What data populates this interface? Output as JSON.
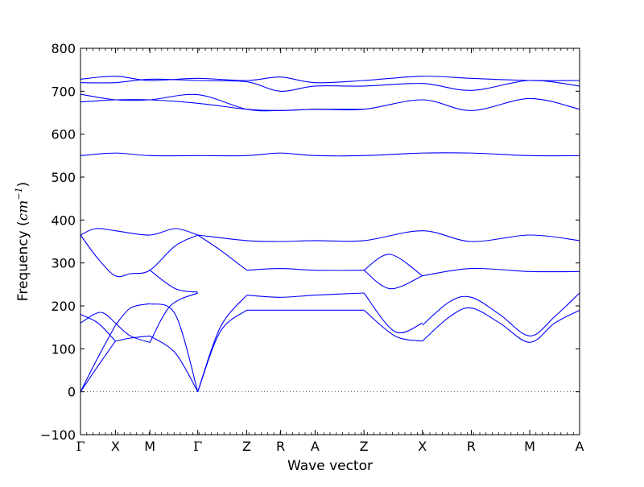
{
  "chart_data": {
    "type": "line",
    "xlabel": "Wave vector",
    "ylabel": "Frequency (cm⁻¹)",
    "ylabel_text": "Frequency (",
    "ylabel_unit": "cm",
    "ylabel_exp": "−1",
    "ylabel_close": ")",
    "ylim": [
      -100,
      800
    ],
    "yticks": [
      -100,
      0,
      100,
      200,
      300,
      400,
      500,
      600,
      700,
      800
    ],
    "grid": false,
    "legend": "none",
    "line_color": "#0000ff",
    "zero_line_color": "#555555",
    "x_ticks": [
      {
        "label": "Γ",
        "pos": 0.0
      },
      {
        "label": "X",
        "pos": 0.07
      },
      {
        "label": "M",
        "pos": 0.139
      },
      {
        "label": "Γ",
        "pos": 0.235
      },
      {
        "label": "Z",
        "pos": 0.333
      },
      {
        "label": "R",
        "pos": 0.401
      },
      {
        "label": "A",
        "pos": 0.47
      },
      {
        "label": "Z",
        "pos": 0.568
      },
      {
        "label": "X",
        "pos": 0.685
      },
      {
        "label": "R",
        "pos": 0.783
      },
      {
        "label": "M",
        "pos": 0.9
      },
      {
        "label": "A",
        "pos": 1.0
      }
    ],
    "series": [
      {
        "x": [
          0,
          0.035,
          0.07
        ],
        "y": [
          0,
          80,
          155
        ]
      },
      {
        "x": [
          0,
          0.035,
          0.07
        ],
        "y": [
          0,
          60,
          118
        ]
      },
      {
        "x": [
          0,
          0.04,
          0.07
        ],
        "y": [
          160,
          185,
          160
        ]
      },
      {
        "x": [
          0,
          0.035,
          0.07
        ],
        "y": [
          180,
          160,
          118
        ]
      },
      {
        "x": [
          0.07,
          0.1,
          0.139
        ],
        "y": [
          155,
          195,
          205
        ]
      },
      {
        "x": [
          0.07,
          0.1,
          0.139
        ],
        "y": [
          118,
          125,
          130
        ]
      },
      {
        "x": [
          0.07,
          0.1,
          0.139
        ],
        "y": [
          160,
          130,
          115
        ]
      },
      {
        "x": [
          0.139,
          0.19,
          0.235
        ],
        "y": [
          205,
          180,
          0
        ]
      },
      {
        "x": [
          0.139,
          0.19,
          0.235
        ],
        "y": [
          130,
          90,
          0
        ]
      },
      {
        "x": [
          0.139,
          0.18,
          0.235
        ],
        "y": [
          115,
          200,
          230
        ]
      },
      {
        "x": [
          0.235,
          0.28,
          0.333
        ],
        "y": [
          0,
          140,
          190
        ]
      },
      {
        "x": [
          0.235,
          0.28,
          0.333
        ],
        "y": [
          0,
          150,
          225
        ]
      },
      {
        "x": [
          0.333,
          0.4,
          0.47,
          0.568
        ],
        "y": [
          190,
          190,
          190,
          190
        ]
      },
      {
        "x": [
          0.333,
          0.4,
          0.47,
          0.568
        ],
        "y": [
          225,
          220,
          225,
          230
        ]
      },
      {
        "x": [
          0.568,
          0.63,
          0.685
        ],
        "y": [
          190,
          130,
          118
        ]
      },
      {
        "x": [
          0.568,
          0.63,
          0.685
        ],
        "y": [
          230,
          140,
          160
        ]
      },
      {
        "x": [
          0.685,
          0.74,
          0.783,
          0.84,
          0.9,
          0.95,
          1.0
        ],
        "y": [
          155,
          210,
          220,
          180,
          130,
          175,
          230
        ]
      },
      {
        "x": [
          0.685,
          0.74,
          0.783,
          0.84,
          0.9,
          0.95,
          1.0
        ],
        "y": [
          118,
          175,
          195,
          160,
          115,
          160,
          190
        ]
      },
      {
        "x": [
          0,
          0.035,
          0.07,
          0.1,
          0.139,
          0.19,
          0.235
        ],
        "y": [
          365,
          310,
          270,
          275,
          283,
          340,
          365
        ]
      },
      {
        "x": [
          0,
          0.03,
          0.07,
          0.139,
          0.19,
          0.235
        ],
        "y": [
          365,
          380,
          375,
          365,
          380,
          365
        ]
      },
      {
        "x": [
          0.139,
          0.19,
          0.235
        ],
        "y": [
          283,
          240,
          232
        ]
      },
      {
        "x": [
          0.235,
          0.28,
          0.333
        ],
        "y": [
          365,
          330,
          283
        ]
      },
      {
        "x": [
          0.235,
          0.333,
          0.4,
          0.47,
          0.568,
          0.685,
          0.783,
          0.9,
          1.0
        ],
        "y": [
          365,
          352,
          350,
          352,
          352,
          375,
          350,
          365,
          352
        ]
      },
      {
        "x": [
          0.333,
          0.4,
          0.47,
          0.568
        ],
        "y": [
          283,
          287,
          283,
          283
        ]
      },
      {
        "x": [
          0.568,
          0.62,
          0.685
        ],
        "y": [
          283,
          320,
          270
        ]
      },
      {
        "x": [
          0.568,
          0.62,
          0.685
        ],
        "y": [
          283,
          240,
          270
        ]
      },
      {
        "x": [
          0.685,
          0.783,
          0.9,
          1.0
        ],
        "y": [
          270,
          287,
          280,
          280
        ]
      },
      {
        "x": [
          0,
          0.07,
          0.139,
          0.235,
          0.333,
          0.4,
          0.47,
          0.568,
          0.685,
          0.783,
          0.9,
          1.0
        ],
        "y": [
          550,
          556,
          550,
          550,
          550,
          556,
          550,
          550,
          556,
          556,
          550,
          550
        ]
      },
      {
        "x": [
          0,
          0.07,
          0.139,
          0.235,
          0.333,
          0.4,
          0.47,
          0.568,
          0.685,
          0.783,
          0.9,
          1.0
        ],
        "y": [
          675,
          680,
          680,
          672,
          658,
          655,
          658,
          658,
          680,
          655,
          683,
          658
        ]
      },
      {
        "x": [
          0,
          0.07,
          0.139,
          0.235,
          0.333,
          0.4,
          0.47,
          0.568
        ],
        "y": [
          693,
          680,
          680,
          692,
          658,
          655,
          658,
          658
        ]
      },
      {
        "x": [
          0,
          0.07,
          0.139,
          0.235,
          0.333,
          0.4,
          0.47,
          0.568,
          0.685,
          0.783,
          0.9,
          1.0
        ],
        "y": [
          728,
          735,
          725,
          730,
          725,
          733,
          720,
          725,
          735,
          730,
          725,
          725
        ]
      },
      {
        "x": [
          0,
          0.07,
          0.139,
          0.235,
          0.333,
          0.4,
          0.47,
          0.568,
          0.685,
          0.783,
          0.9,
          1.0
        ],
        "y": [
          720,
          720,
          728,
          725,
          722,
          700,
          712,
          712,
          718,
          702,
          725,
          712
        ]
      }
    ]
  }
}
